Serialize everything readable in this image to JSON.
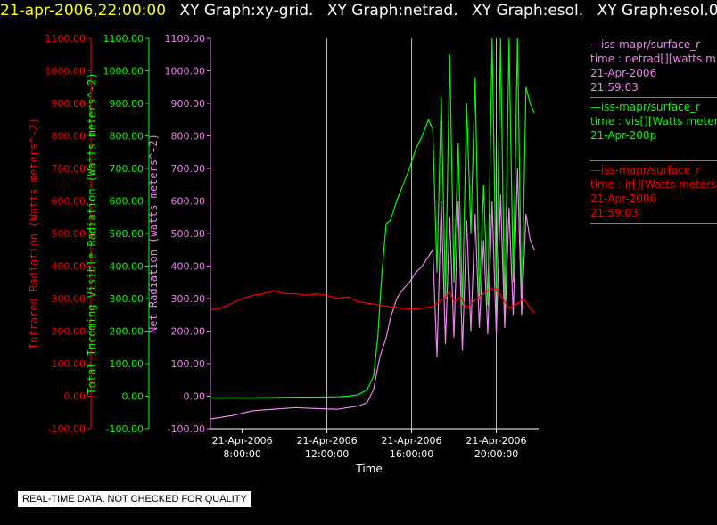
{
  "header": {
    "timestamp": "21-apr-2006,22:00:00",
    "graphs": [
      "XY Graph:xy-grid.",
      "XY Graph:netrad.",
      "XY Graph:esol.",
      "XY Graph:esol.0."
    ]
  },
  "legend": [
    {
      "name": "—iss-mapr/surface_r",
      "line1": "time : netrad[][watts m",
      "line2": "21-Apr-2006",
      "line3": "21:59:03",
      "color": "#ee82ee"
    },
    {
      "name": "—iss-mapr/surface_r",
      "line1": "time : vis[][Watts meter",
      "line2": "21-Apr-200p",
      "line3": "",
      "color": "#00ff00"
    },
    {
      "name": "—iss-mapr/surface_r",
      "line1": "time : ir[][Watts meters",
      "line2": "21-Apr-2006",
      "line3": "21:59:03",
      "color": "#ff0000"
    }
  ],
  "quality_notice": "REAL-TIME DATA, NOT CHECKED FOR QUALITY",
  "chart_data": {
    "type": "line",
    "xlabel": "Time",
    "x_range_hours": [
      6.5,
      22.0
    ],
    "x_ticks": [
      {
        "hour": 8,
        "date": "21-Apr-2006",
        "time": "8:00:00"
      },
      {
        "hour": 12,
        "date": "21-Apr-2006",
        "time": "12:00:00"
      },
      {
        "hour": 16,
        "date": "21-Apr-2006",
        "time": "16:00:00"
      },
      {
        "hour": 20,
        "date": "21-Apr-2006",
        "time": "20:00:00"
      }
    ],
    "y_range": [
      -100,
      1100
    ],
    "y_ticks": [
      "-100.00",
      "0.00",
      "100.00",
      "200.00",
      "300.00",
      "400.00",
      "500.00",
      "600.00",
      "700.00",
      "800.00",
      "900.00",
      "1000.00",
      "1100.00"
    ],
    "axes": [
      {
        "label": "Infrared Radiation (Watts meters^-2)",
        "color": "#ff0000"
      },
      {
        "label": "Total Incoming Visible Radiation (Watts meters^-2)",
        "color": "#00ff00"
      },
      {
        "label": "Net Radiation (watts meters^-2)",
        "color": "#ee82ee"
      }
    ],
    "vertical_gridlines_hours": [
      12,
      16,
      20
    ],
    "series": [
      {
        "color": "#00ff00",
        "x": [
          6.5,
          7.5,
          8.5,
          9.5,
          10.5,
          11.5,
          12.5,
          13.0,
          13.5,
          13.9,
          14.2,
          14.4,
          14.6,
          14.8,
          15.0,
          15.3,
          15.6,
          15.9,
          16.2,
          16.5,
          16.8,
          17.0,
          17.2,
          17.4,
          17.6,
          17.8,
          18.0,
          18.2,
          18.4,
          18.6,
          18.8,
          19.0,
          19.2,
          19.4,
          19.6,
          19.8,
          20.0,
          20.2,
          20.4,
          20.6,
          20.8,
          21.0,
          21.2,
          21.4,
          21.6,
          21.8
        ],
        "y": [
          -5,
          -5,
          -5,
          -4,
          -3,
          -3,
          -2,
          0,
          5,
          20,
          60,
          180,
          380,
          530,
          540,
          600,
          650,
          700,
          760,
          800,
          850,
          820,
          380,
          920,
          300,
          1050,
          350,
          780,
          280,
          900,
          500,
          980,
          300,
          650,
          280,
          1100,
          320,
          1100,
          250,
          1100,
          350,
          1100,
          250,
          950,
          900,
          870
        ]
      },
      {
        "color": "#ee82ee",
        "x": [
          6.5,
          7.5,
          8.5,
          9.5,
          10.5,
          11.5,
          12.5,
          13.0,
          13.5,
          13.9,
          14.2,
          14.5,
          14.8,
          15.0,
          15.3,
          15.6,
          15.9,
          16.2,
          16.5,
          16.8,
          17.0,
          17.2,
          17.4,
          17.6,
          17.8,
          18.0,
          18.2,
          18.4,
          18.6,
          18.8,
          19.0,
          19.2,
          19.4,
          19.6,
          19.8,
          20.0,
          20.2,
          20.4,
          20.6,
          20.8,
          21.0,
          21.2,
          21.4,
          21.6,
          21.8
        ],
        "y": [
          -70,
          -60,
          -45,
          -40,
          -35,
          -38,
          -40,
          -35,
          -30,
          -20,
          20,
          120,
          180,
          240,
          300,
          330,
          350,
          380,
          400,
          430,
          450,
          120,
          600,
          160,
          550,
          180,
          600,
          140,
          540,
          200,
          560,
          210,
          480,
          190,
          600,
          190,
          620,
          210,
          580,
          250,
          700,
          250,
          560,
          480,
          450
        ]
      },
      {
        "color": "#ff0000",
        "x": [
          6.5,
          7.0,
          7.5,
          8.0,
          8.5,
          9.0,
          9.5,
          10.0,
          10.5,
          11.0,
          11.5,
          12.0,
          12.5,
          13.0,
          13.5,
          14.0,
          14.5,
          15.0,
          15.5,
          16.0,
          16.5,
          17.0,
          17.5,
          17.8,
          18.0,
          18.3,
          18.6,
          19.0,
          19.3,
          19.6,
          20.0,
          20.3,
          20.6,
          21.0,
          21.3,
          21.6,
          21.8
        ],
        "y": [
          265,
          270,
          285,
          300,
          310,
          315,
          325,
          315,
          315,
          310,
          315,
          310,
          300,
          305,
          290,
          285,
          280,
          275,
          270,
          268,
          270,
          275,
          300,
          320,
          290,
          305,
          270,
          295,
          310,
          325,
          330,
          300,
          270,
          285,
          300,
          270,
          255
        ]
      }
    ]
  }
}
